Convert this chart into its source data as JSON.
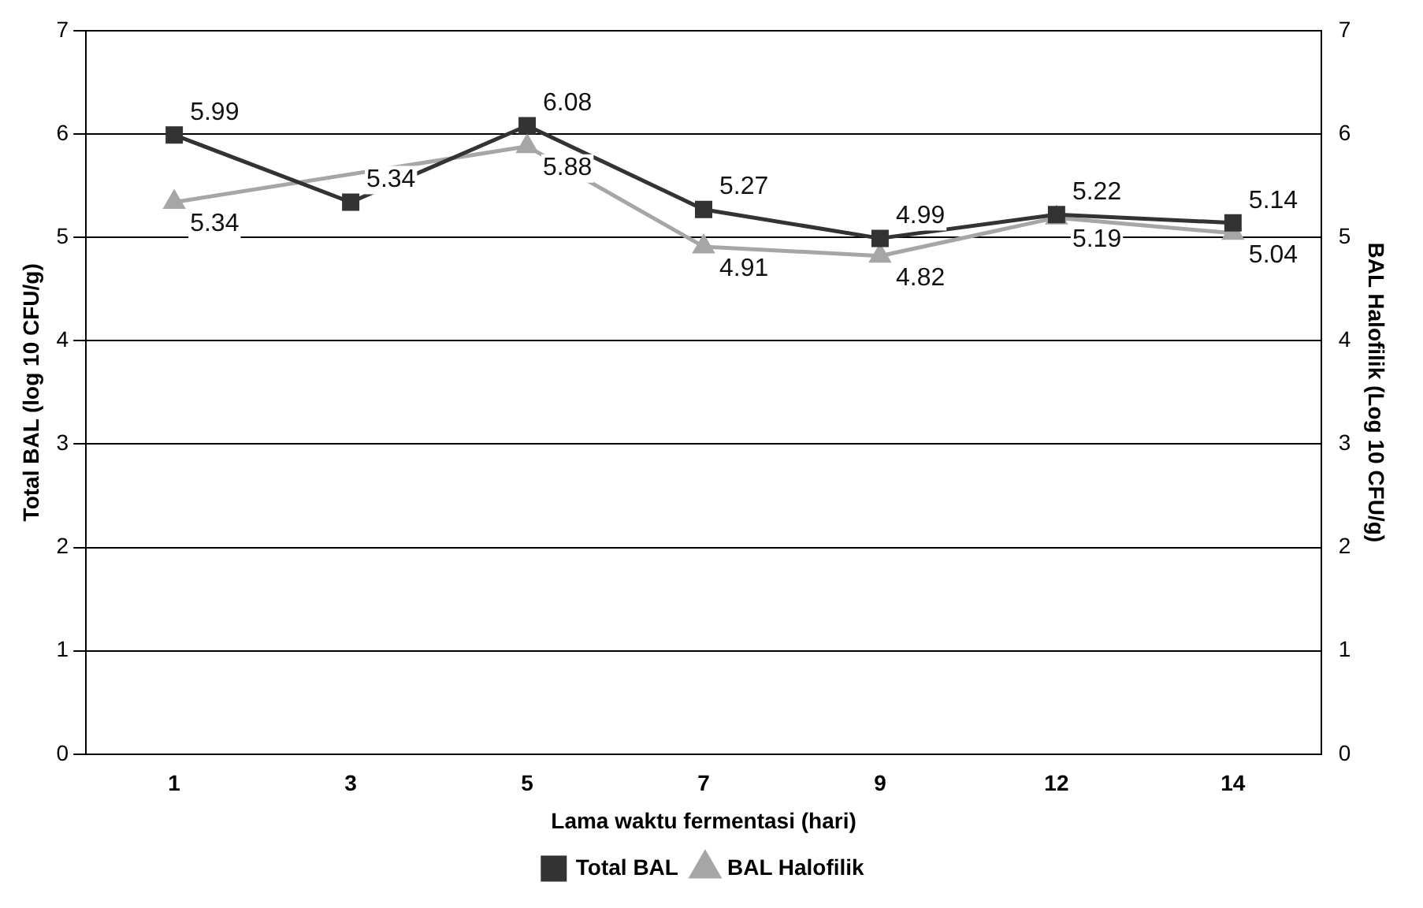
{
  "chart_data": {
    "type": "line",
    "xlabel": "Lama waktu fermentasi (hari)",
    "ylabel": "Total BAL (log 10 CFU/g)",
    "y2label": "BAL Halofilik (Log 10 CFU/g)",
    "categories": [
      "1",
      "3",
      "5",
      "7",
      "9",
      "12",
      "14"
    ],
    "series": [
      {
        "name": "Total BAL",
        "color": "#333333",
        "marker": "square",
        "values": [
          5.99,
          5.34,
          6.08,
          5.27,
          4.99,
          5.22,
          5.14
        ],
        "value_labels": [
          "5.99",
          "5.34",
          "6.08",
          "5.27",
          "4.99",
          "5.22",
          "5.14"
        ]
      },
      {
        "name": "BAL Halofilik",
        "color": "#a6a6a6",
        "marker": "triangle",
        "values": [
          5.34,
          null,
          5.88,
          4.91,
          4.82,
          5.19,
          5.04
        ],
        "value_labels": [
          "5.34",
          null,
          "5.88",
          "4.91",
          "4.82",
          "5.19",
          "5.04"
        ]
      }
    ],
    "ylim": [
      0,
      7
    ],
    "yticks": [
      0,
      1,
      2,
      3,
      4,
      5,
      6,
      7
    ],
    "y2lim": [
      0,
      7
    ],
    "y2ticks": [
      0,
      1,
      2,
      3,
      4,
      5,
      6,
      7
    ],
    "grid": "y",
    "legend": "bottom"
  }
}
